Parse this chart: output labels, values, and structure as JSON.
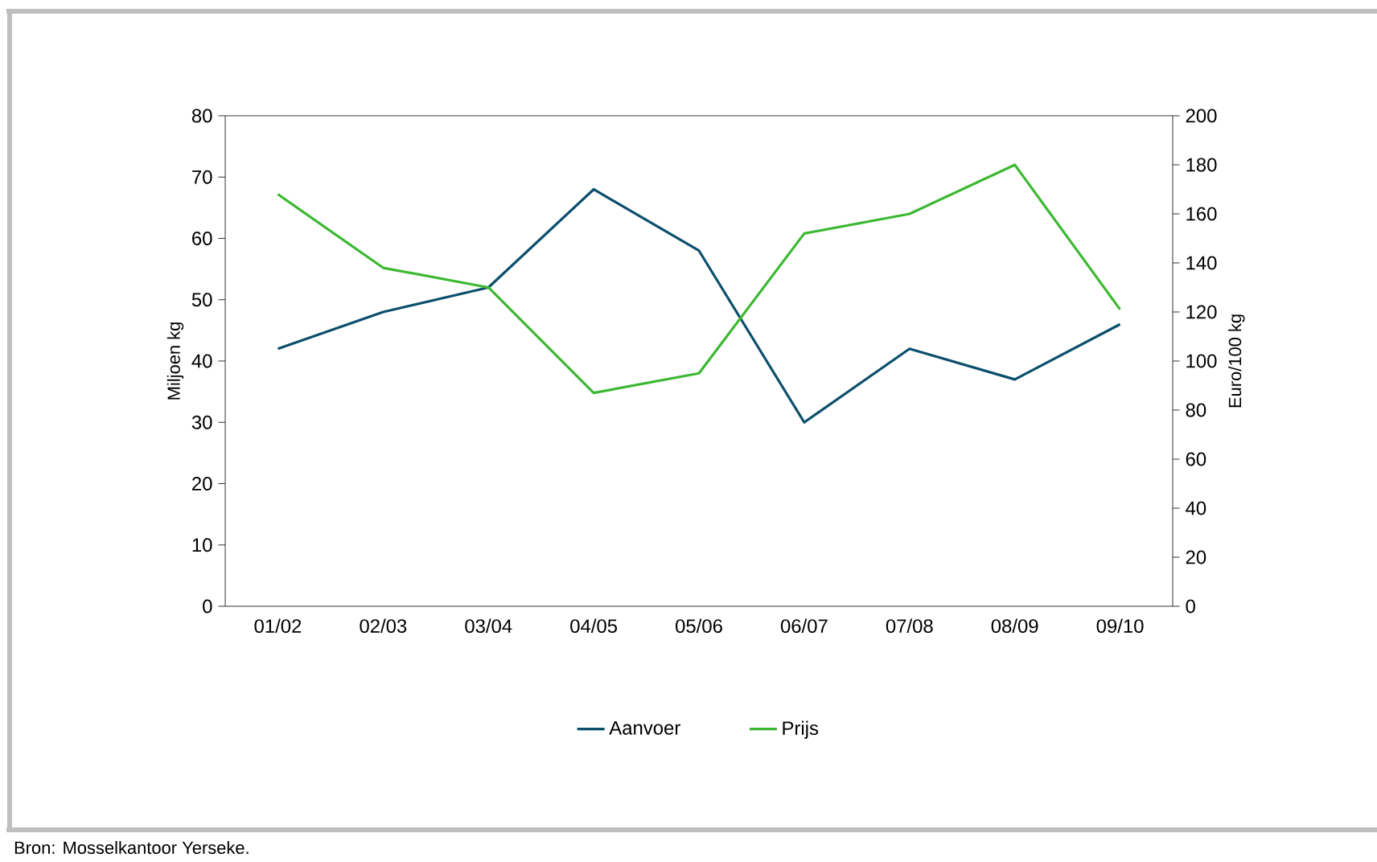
{
  "chart_data": {
    "type": "line",
    "categories": [
      "01/02",
      "02/03",
      "03/04",
      "04/05",
      "05/06",
      "06/07",
      "07/08",
      "08/09",
      "09/10"
    ],
    "series": [
      {
        "name": "Aanvoer",
        "color": "#0b4f6c",
        "values": [
          42,
          48,
          52,
          68,
          58,
          30,
          42,
          37,
          46
        ]
      },
      {
        "name": "Prijs",
        "color": "#3cb832",
        "axis": "y2",
        "values": [
          168,
          138,
          130,
          87,
          95,
          152,
          160,
          180,
          121
        ]
      }
    ],
    "ylabel": "Miljoen kg",
    "y2label": "Euro/100 kg",
    "ylim": [
      0,
      80
    ],
    "yticks": [
      0,
      10,
      20,
      30,
      40,
      50,
      60,
      70,
      80
    ],
    "y2lim": [
      0,
      200
    ],
    "y2ticks": [
      0,
      20,
      40,
      60,
      80,
      100,
      120,
      140,
      160,
      180,
      200
    ],
    "grid": false,
    "legend": "bottom",
    "marker": "none",
    "line_style": "solid",
    "annotations": [
      "Bron: Mosselkantoor Yerseke."
    ]
  }
}
